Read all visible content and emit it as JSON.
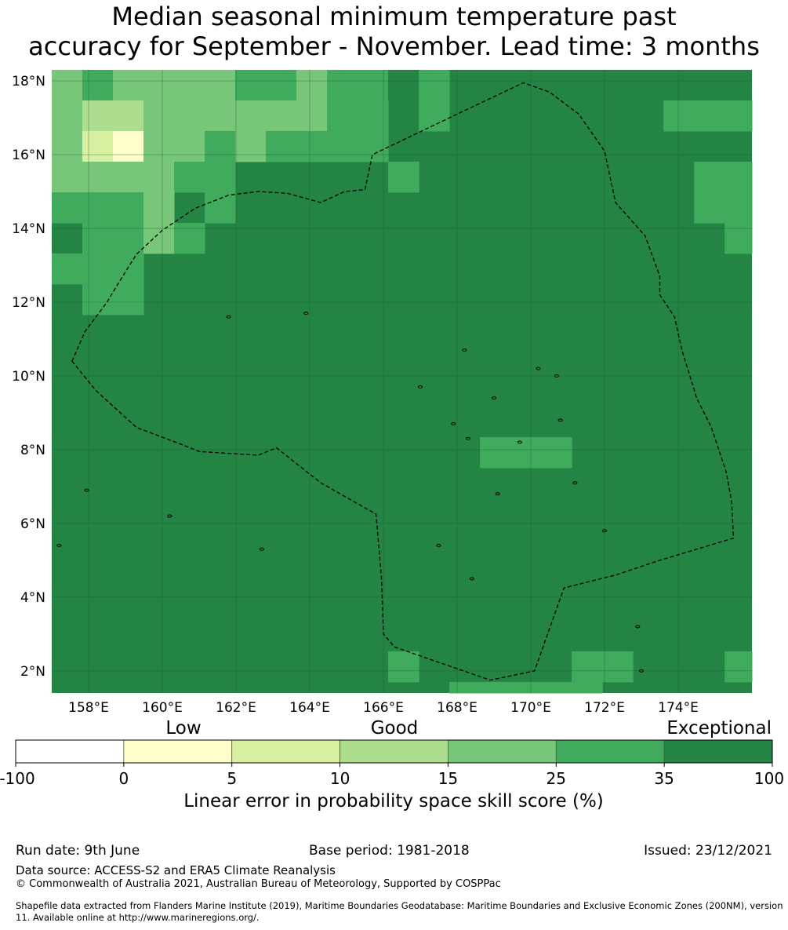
{
  "title": {
    "line1": "Median seasonal minimum temperature past",
    "line2": "accuracy for September - November. Lead time: 3 months"
  },
  "map": {
    "lon_range": [
      157,
      176
    ],
    "lat_range": [
      1.4,
      18.3
    ],
    "lon_ticks": [
      {
        "value": 158,
        "label": "158°E"
      },
      {
        "value": 160,
        "label": "160°E"
      },
      {
        "value": 162,
        "label": "162°E"
      },
      {
        "value": 164,
        "label": "164°E"
      },
      {
        "value": 166,
        "label": "166°E"
      },
      {
        "value": 168,
        "label": "168°E"
      },
      {
        "value": 170,
        "label": "170°E"
      },
      {
        "value": 172,
        "label": "172°E"
      },
      {
        "value": 174,
        "label": "174°E"
      }
    ],
    "lat_ticks": [
      {
        "value": 18,
        "label": "18°N"
      },
      {
        "value": 16,
        "label": "16°N"
      },
      {
        "value": 14,
        "label": "14°N"
      },
      {
        "value": 12,
        "label": "12°N"
      },
      {
        "value": 10,
        "label": "10°N"
      },
      {
        "value": 8,
        "label": "8°N"
      },
      {
        "value": 6,
        "label": "6°N"
      },
      {
        "value": 4,
        "label": "4°N"
      },
      {
        "value": 2,
        "label": "2°N"
      }
    ],
    "default_class": 6,
    "grid_origin": {
      "lon": 157.0,
      "lat": 18.3,
      "cell_deg": 0.83
    },
    "cells": [
      [
        0,
        0,
        4
      ],
      [
        0,
        1,
        5
      ],
      [
        0,
        2,
        4
      ],
      [
        0,
        3,
        4
      ],
      [
        0,
        4,
        4
      ],
      [
        0,
        5,
        4
      ],
      [
        0,
        6,
        5
      ],
      [
        0,
        7,
        5
      ],
      [
        0,
        8,
        4
      ],
      [
        0,
        9,
        5
      ],
      [
        0,
        10,
        5
      ],
      [
        0,
        11,
        6
      ],
      [
        0,
        12,
        5
      ],
      [
        1,
        0,
        4
      ],
      [
        1,
        1,
        3
      ],
      [
        1,
        2,
        3
      ],
      [
        1,
        3,
        4
      ],
      [
        1,
        4,
        4
      ],
      [
        1,
        5,
        4
      ],
      [
        1,
        6,
        4
      ],
      [
        1,
        7,
        4
      ],
      [
        1,
        8,
        4
      ],
      [
        1,
        9,
        5
      ],
      [
        1,
        10,
        5
      ],
      [
        1,
        12,
        5
      ],
      [
        1,
        20,
        5
      ],
      [
        1,
        21,
        5
      ],
      [
        1,
        22,
        5
      ],
      [
        2,
        0,
        4
      ],
      [
        2,
        1,
        2
      ],
      [
        2,
        2,
        1
      ],
      [
        2,
        3,
        4
      ],
      [
        2,
        4,
        4
      ],
      [
        2,
        5,
        5
      ],
      [
        2,
        6,
        4
      ],
      [
        2,
        7,
        5
      ],
      [
        2,
        8,
        5
      ],
      [
        2,
        9,
        5
      ],
      [
        2,
        10,
        5
      ],
      [
        3,
        0,
        4
      ],
      [
        3,
        1,
        4
      ],
      [
        3,
        2,
        4
      ],
      [
        3,
        3,
        4
      ],
      [
        3,
        4,
        5
      ],
      [
        3,
        5,
        5
      ],
      [
        3,
        11,
        5
      ],
      [
        3,
        21,
        5
      ],
      [
        3,
        22,
        5
      ],
      [
        4,
        0,
        5
      ],
      [
        4,
        1,
        5
      ],
      [
        4,
        2,
        5
      ],
      [
        4,
        3,
        4
      ],
      [
        4,
        5,
        5
      ],
      [
        4,
        21,
        5
      ],
      [
        4,
        22,
        5
      ],
      [
        5,
        1,
        5
      ],
      [
        5,
        2,
        5
      ],
      [
        5,
        3,
        4
      ],
      [
        5,
        4,
        5
      ],
      [
        5,
        22,
        5
      ],
      [
        6,
        0,
        5
      ],
      [
        6,
        1,
        5
      ],
      [
        6,
        2,
        5
      ],
      [
        7,
        1,
        5
      ],
      [
        7,
        2,
        5
      ],
      [
        12,
        14,
        5
      ],
      [
        12,
        15,
        5
      ],
      [
        12,
        16,
        5
      ],
      [
        19,
        11,
        5
      ],
      [
        19,
        17,
        5
      ],
      [
        19,
        18,
        5
      ],
      [
        19,
        22,
        5
      ],
      [
        20,
        13,
        5
      ],
      [
        20,
        14,
        5
      ],
      [
        20,
        15,
        5
      ],
      [
        20,
        16,
        5
      ],
      [
        20,
        17,
        5
      ],
      [
        21,
        14,
        5
      ],
      [
        22,
        0,
        5
      ],
      [
        22,
        1,
        5
      ],
      [
        22,
        17,
        5
      ],
      [
        22,
        18,
        5
      ],
      [
        22,
        20,
        5
      ],
      [
        23,
        17,
        5
      ],
      [
        23,
        18,
        5
      ],
      [
        23,
        19,
        5
      ],
      [
        23,
        20,
        5
      ],
      [
        23,
        21,
        4
      ],
      [
        23,
        22,
        4
      ],
      [
        24,
        3,
        5
      ],
      [
        24,
        16,
        5
      ],
      [
        24,
        17,
        5
      ],
      [
        24,
        18,
        5
      ],
      [
        24,
        19,
        5
      ],
      [
        24,
        20,
        5
      ],
      [
        24,
        21,
        4
      ],
      [
        24,
        22,
        5
      ],
      [
        25,
        5,
        5
      ],
      [
        25,
        16,
        5
      ],
      [
        25,
        17,
        5
      ],
      [
        25,
        18,
        5
      ],
      [
        25,
        19,
        5
      ],
      [
        25,
        20,
        5
      ],
      [
        25,
        21,
        4
      ],
      [
        25,
        22,
        4
      ],
      [
        26,
        0,
        5
      ],
      [
        26,
        1,
        5
      ],
      [
        26,
        2,
        5
      ],
      [
        26,
        3,
        5
      ],
      [
        26,
        4,
        5
      ],
      [
        26,
        5,
        5
      ],
      [
        26,
        16,
        5
      ],
      [
        26,
        17,
        5
      ],
      [
        26,
        18,
        5
      ],
      [
        26,
        19,
        5
      ],
      [
        26,
        20,
        5
      ],
      [
        26,
        21,
        4
      ],
      [
        26,
        22,
        4
      ],
      [
        27,
        0,
        5
      ],
      [
        27,
        1,
        5
      ],
      [
        27,
        2,
        5
      ],
      [
        27,
        4,
        5
      ],
      [
        27,
        5,
        5
      ],
      [
        27,
        6,
        5
      ],
      [
        27,
        7,
        5
      ],
      [
        27,
        16,
        5
      ],
      [
        27,
        17,
        5
      ],
      [
        27,
        18,
        4
      ],
      [
        27,
        19,
        5
      ],
      [
        27,
        20,
        5
      ],
      [
        27,
        21,
        4
      ],
      [
        27,
        22,
        4
      ],
      [
        28,
        0,
        4
      ],
      [
        28,
        1,
        4
      ],
      [
        28,
        2,
        5
      ],
      [
        28,
        3,
        5
      ],
      [
        28,
        5,
        4
      ],
      [
        28,
        6,
        5
      ],
      [
        28,
        7,
        5
      ],
      [
        28,
        14,
        5
      ],
      [
        28,
        15,
        5
      ],
      [
        28,
        16,
        5
      ],
      [
        28,
        17,
        5
      ],
      [
        28,
        18,
        5
      ],
      [
        28,
        19,
        5
      ],
      [
        28,
        20,
        4
      ],
      [
        28,
        21,
        4
      ],
      [
        28,
        22,
        4
      ],
      [
        29,
        0,
        4
      ],
      [
        29,
        1,
        4
      ],
      [
        29,
        2,
        5
      ],
      [
        29,
        3,
        4
      ],
      [
        29,
        4,
        4
      ],
      [
        29,
        5,
        4
      ],
      [
        29,
        6,
        4
      ],
      [
        29,
        7,
        5
      ],
      [
        29,
        8,
        4
      ],
      [
        29,
        10,
        5
      ],
      [
        29,
        13,
        5
      ],
      [
        29,
        14,
        5
      ],
      [
        29,
        15,
        5
      ],
      [
        29,
        16,
        5
      ],
      [
        29,
        17,
        5
      ],
      [
        29,
        18,
        5
      ],
      [
        29,
        19,
        5
      ],
      [
        29,
        20,
        4
      ],
      [
        29,
        21,
        4
      ],
      [
        29,
        22,
        3
      ],
      [
        30,
        0,
        4
      ],
      [
        30,
        1,
        3
      ],
      [
        30,
        2,
        4
      ],
      [
        30,
        3,
        4
      ],
      [
        30,
        4,
        4
      ],
      [
        30,
        5,
        4
      ],
      [
        30,
        6,
        4
      ],
      [
        30,
        7,
        4
      ],
      [
        30,
        8,
        4
      ],
      [
        30,
        9,
        4
      ],
      [
        30,
        10,
        5
      ],
      [
        30,
        11,
        5
      ],
      [
        30,
        12,
        6
      ],
      [
        30,
        14,
        5
      ],
      [
        30,
        15,
        5
      ],
      [
        30,
        16,
        4
      ],
      [
        30,
        17,
        4
      ],
      [
        30,
        18,
        4
      ],
      [
        30,
        19,
        4
      ],
      [
        30,
        20,
        4
      ],
      [
        30,
        21,
        3
      ],
      [
        30,
        22,
        3
      ],
      [
        31,
        0,
        4
      ],
      [
        31,
        1,
        4
      ],
      [
        31,
        2,
        4
      ],
      [
        31,
        3,
        4
      ],
      [
        31,
        4,
        4
      ],
      [
        31,
        5,
        4
      ],
      [
        31,
        6,
        4
      ],
      [
        31,
        7,
        4
      ],
      [
        31,
        8,
        4
      ],
      [
        31,
        9,
        4
      ],
      [
        31,
        10,
        4
      ],
      [
        31,
        11,
        4
      ],
      [
        31,
        12,
        5
      ],
      [
        31,
        13,
        5
      ],
      [
        31,
        14,
        4
      ],
      [
        31,
        15,
        4
      ],
      [
        31,
        16,
        4
      ],
      [
        31,
        17,
        4
      ],
      [
        31,
        18,
        4
      ],
      [
        31,
        19,
        4
      ],
      [
        31,
        20,
        3
      ],
      [
        31,
        21,
        3
      ],
      [
        31,
        22,
        3
      ]
    ],
    "classes": [
      "#ffffff",
      "#ffffcc",
      "#d9f0a3",
      "#addd8e",
      "#78c679",
      "#41ab5d",
      "#238443"
    ],
    "eez_boundary": [
      [
        157.55,
        10.4
      ],
      [
        157.9,
        11.2
      ],
      [
        158.5,
        12
      ],
      [
        158.8,
        12.5
      ],
      [
        159.3,
        13.3
      ],
      [
        160,
        13.95
      ],
      [
        160.9,
        14.55
      ],
      [
        161.8,
        14.9
      ],
      [
        162.6,
        15
      ],
      [
        163.4,
        14.95
      ],
      [
        164.3,
        14.7
      ],
      [
        164.95,
        15
      ],
      [
        165.5,
        15.05
      ],
      [
        165.7,
        16
      ],
      [
        168,
        17.1
      ],
      [
        169.8,
        17.95
      ],
      [
        170.5,
        17.7
      ],
      [
        171.3,
        17.1
      ],
      [
        172,
        16.1
      ],
      [
        172.3,
        14.7
      ],
      [
        173.1,
        13.8
      ],
      [
        173.5,
        12.7
      ],
      [
        173.5,
        12.2
      ],
      [
        173.9,
        11.6
      ],
      [
        174.1,
        10.7
      ],
      [
        174.5,
        9.4
      ],
      [
        174.9,
        8.6
      ],
      [
        175.1,
        8
      ],
      [
        175.3,
        7.4
      ],
      [
        175.45,
        6.6
      ],
      [
        175.5,
        5.6
      ],
      [
        173.5,
        5
      ],
      [
        172.3,
        4.6
      ],
      [
        170.9,
        4.25
      ],
      [
        170.1,
        2
      ],
      [
        168.9,
        1.75
      ],
      [
        167.3,
        2.3
      ],
      [
        166.3,
        2.65
      ],
      [
        166,
        3
      ],
      [
        165.95,
        4.5
      ],
      [
        165.8,
        6.25
      ],
      [
        164.3,
        7.1
      ],
      [
        163.1,
        8.05
      ],
      [
        162.6,
        7.85
      ],
      [
        161,
        7.95
      ],
      [
        160.5,
        8.15
      ],
      [
        159.3,
        8.6
      ],
      [
        158.2,
        9.6
      ],
      [
        157.55,
        10.4
      ]
    ]
  },
  "colorbar": {
    "tick_labels": [
      "-100",
      "0",
      "5",
      "10",
      "15",
      "25",
      "35",
      "100"
    ],
    "category_labels": [
      "Low",
      "Good",
      "Exceptional"
    ],
    "label": "Linear error in probability space skill score (%)",
    "colors": [
      "#ffffff",
      "#ffffcc",
      "#d9f0a3",
      "#addd8e",
      "#78c679",
      "#41ab5d",
      "#238443"
    ]
  },
  "footer": {
    "run_date": "Run date: 9th June",
    "base_period": "Base period: 1981-2018",
    "issued": "Issued: 23/12/2021",
    "data_source": "Data source: ACCESS-S2 and ERA5 Climate Reanalysis",
    "copyright": "© Commonwealth of Australia 2021, Australian Bureau of Meteorology, Supported by COSPPac",
    "shapefile": "Shapefile data extracted from Flanders Marine Institute (2019), Maritime Boundaries Geodatabase: Maritime Boundaries and Exclusive Economic Zones (200NM), version 11. Available online at http://www.marineregions.org/."
  }
}
